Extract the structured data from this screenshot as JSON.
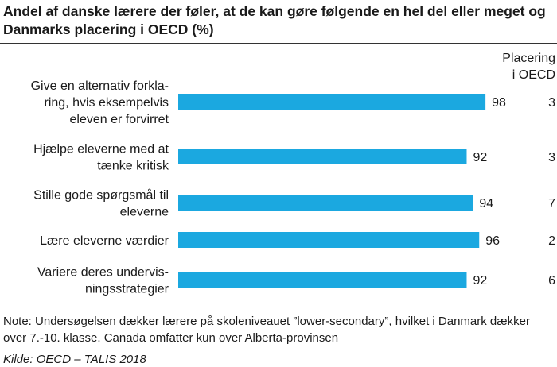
{
  "title": "Andel af danske lærere der føler, at de kan gøre følgende en hel del eller meget og Danmarks placering i OECD (%)",
  "rank_header": [
    "Placering",
    "i OECD"
  ],
  "note": "Note: Undersøgelsen dækker lærere på skoleniveauet ”lower-secondary”, hvilket i Danmark dækker over 7.-10. klasse. Canada omfatter kun over Alberta-provinsen",
  "source": "Kilde: OECD – TALIS 2018",
  "colors": {
    "bar": "#1ba8e0",
    "text": "#1a1a1a",
    "rule": "#333333"
  },
  "chart_data": {
    "type": "bar",
    "orientation": "horizontal",
    "title": "Andel af danske lærere der føler, at de kan gøre følgende en hel del eller meget og Danmarks placering i OECD (%)",
    "categories": [
      [
        "Give en alternativ forkla-",
        "ring, hvis eksempelvis",
        "eleven er forvirret"
      ],
      [
        "Hjælpe eleverne med at",
        "tænke kritisk"
      ],
      [
        "Stille gode spørgsmål til",
        "eleverne"
      ],
      [
        "Lære eleverne værdier"
      ],
      [
        "Variere deres undervis-",
        "ningsstrategier"
      ]
    ],
    "values": [
      98,
      92,
      94,
      96,
      92
    ],
    "value_labels": [
      "98",
      "92",
      "94",
      "96",
      "92"
    ],
    "ranks": [
      "3",
      "3",
      "7",
      "2",
      "6"
    ],
    "xlim": [
      0,
      100
    ],
    "xlabel": "",
    "ylabel": "",
    "grid": false,
    "legend": "none"
  }
}
